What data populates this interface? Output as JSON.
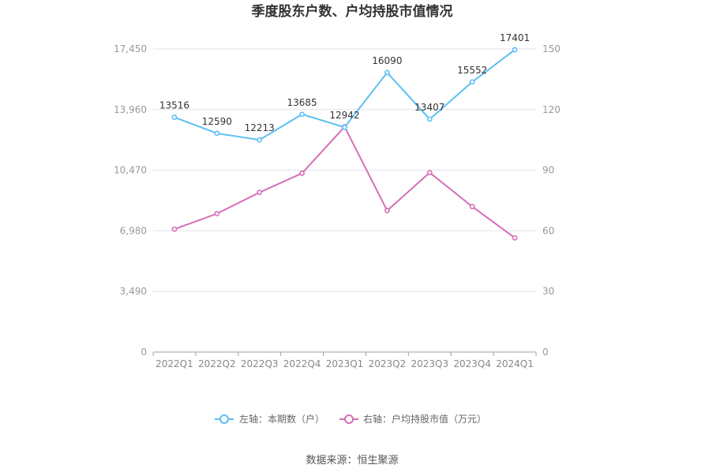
{
  "chart_data": {
    "type": "line",
    "title": "季度股东户数、户均持股市值情况",
    "categories": [
      "2022Q1",
      "2022Q2",
      "2022Q3",
      "2022Q4",
      "2023Q1",
      "2023Q2",
      "2023Q3",
      "2023Q4",
      "2024Q1"
    ],
    "left_axis": {
      "ticks": [
        "0",
        "3,490",
        "6,980",
        "10,470",
        "13,960",
        "17,450"
      ],
      "ylim": [
        0,
        17450
      ]
    },
    "right_axis": {
      "ticks": [
        "0",
        "30",
        "60",
        "90",
        "120",
        "150"
      ],
      "ylim": [
        0,
        150
      ]
    },
    "series": [
      {
        "name": "左轴：本期数（户）",
        "axis": "left",
        "color": "#5bc0f2",
        "values": [
          13516,
          12590,
          12213,
          13685,
          12942,
          16090,
          13407,
          15552,
          17401
        ],
        "labels": [
          "13516",
          "12590",
          "12213",
          "13685",
          "12942",
          "16090",
          "13407",
          "15552",
          "17401"
        ]
      },
      {
        "name": "右轴：户均持股市值（万元）",
        "axis": "right",
        "color": "#d46fb5",
        "values": [
          60.8,
          68.5,
          79.0,
          88.5,
          111.5,
          70.0,
          88.8,
          72.0,
          56.5
        ]
      }
    ],
    "grid": true,
    "legend": "bottom-center",
    "source": "数据来源：恒生聚源"
  }
}
